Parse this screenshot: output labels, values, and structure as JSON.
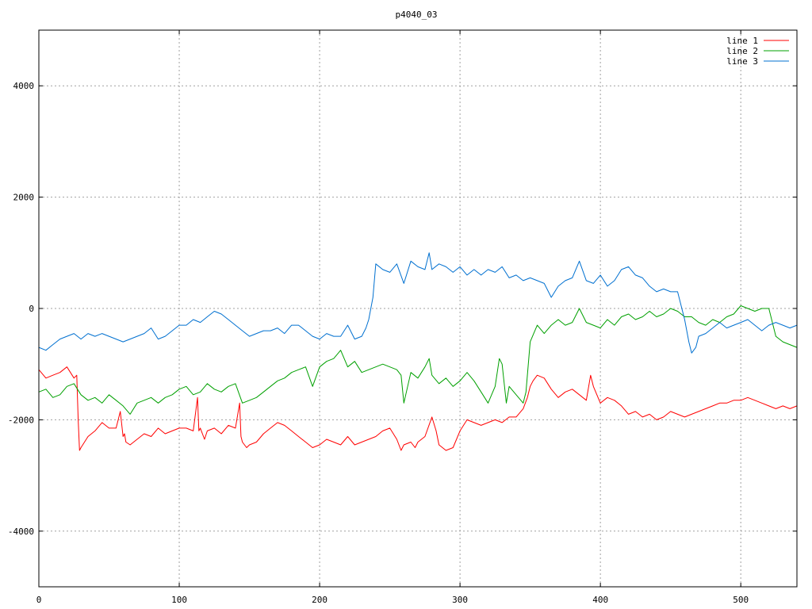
{
  "chart_data": {
    "type": "line",
    "title": "p4040_03",
    "xlabel": "",
    "ylabel": "",
    "xlim": [
      0,
      540
    ],
    "ylim": [
      -5000,
      5000
    ],
    "xticks": [
      0,
      100,
      200,
      300,
      400,
      500
    ],
    "yticks": [
      -4000,
      -2000,
      0,
      2000,
      4000
    ],
    "ytick_labels": [
      "-4000",
      "-2000",
      "0",
      "2000",
      "4000"
    ],
    "grid": true,
    "legend_position": "top-right",
    "series": [
      {
        "name": "line 1",
        "color": "#ff0000",
        "x": [
          0,
          5,
          10,
          15,
          20,
          25,
          27,
          28,
          29,
          30,
          35,
          40,
          45,
          50,
          55,
          58,
          60,
          61,
          62,
          65,
          70,
          75,
          80,
          85,
          90,
          95,
          100,
          105,
          110,
          113,
          114,
          115,
          118,
          120,
          125,
          130,
          135,
          140,
          143,
          144,
          145,
          148,
          150,
          155,
          160,
          165,
          170,
          175,
          180,
          185,
          190,
          195,
          200,
          205,
          210,
          215,
          220,
          225,
          230,
          235,
          240,
          245,
          250,
          255,
          258,
          260,
          265,
          268,
          270,
          275,
          280,
          283,
          285,
          290,
          295,
          300,
          305,
          310,
          315,
          320,
          325,
          330,
          335,
          340,
          345,
          348,
          350,
          352,
          355,
          360,
          365,
          370,
          375,
          380,
          385,
          390,
          393,
          395,
          400,
          405,
          410,
          415,
          420,
          425,
          430,
          435,
          440,
          445,
          450,
          455,
          460,
          465,
          470,
          475,
          480,
          485,
          490,
          495,
          500,
          505,
          510,
          515,
          520,
          525,
          530,
          535,
          540
        ],
        "y": [
          -1100,
          -1250,
          -1200,
          -1150,
          -1050,
          -1250,
          -1200,
          -2000,
          -2550,
          -2500,
          -2300,
          -2200,
          -2050,
          -2150,
          -2150,
          -1850,
          -2300,
          -2250,
          -2400,
          -2450,
          -2350,
          -2250,
          -2300,
          -2150,
          -2250,
          -2200,
          -2150,
          -2150,
          -2200,
          -1600,
          -2200,
          -2150,
          -2350,
          -2200,
          -2150,
          -2250,
          -2100,
          -2150,
          -1700,
          -2300,
          -2400,
          -2500,
          -2450,
          -2400,
          -2250,
          -2150,
          -2050,
          -2100,
          -2200,
          -2300,
          -2400,
          -2500,
          -2450,
          -2350,
          -2400,
          -2450,
          -2300,
          -2450,
          -2400,
          -2350,
          -2300,
          -2200,
          -2150,
          -2350,
          -2550,
          -2450,
          -2400,
          -2500,
          -2400,
          -2300,
          -1950,
          -2200,
          -2450,
          -2550,
          -2500,
          -2200,
          -2000,
          -2050,
          -2100,
          -2050,
          -2000,
          -2050,
          -1950,
          -1950,
          -1800,
          -1600,
          -1400,
          -1300,
          -1200,
          -1250,
          -1450,
          -1600,
          -1500,
          -1450,
          -1550,
          -1650,
          -1200,
          -1400,
          -1700,
          -1600,
          -1650,
          -1750,
          -1900,
          -1850,
          -1950,
          -1900,
          -2000,
          -1950,
          -1850,
          -1900,
          -1950,
          -1900,
          -1850,
          -1800,
          -1750,
          -1700,
          -1700,
          -1650,
          -1650,
          -1600,
          -1650,
          -1700,
          -1750,
          -1800,
          -1750,
          -1800,
          -1750
        ]
      },
      {
        "name": "line 2",
        "color": "#00a000",
        "x": [
          0,
          5,
          10,
          15,
          20,
          25,
          30,
          35,
          40,
          45,
          50,
          55,
          60,
          65,
          70,
          75,
          80,
          85,
          90,
          95,
          100,
          105,
          110,
          115,
          120,
          125,
          130,
          135,
          140,
          145,
          150,
          155,
          160,
          165,
          170,
          175,
          180,
          185,
          190,
          195,
          200,
          205,
          210,
          215,
          220,
          225,
          230,
          235,
          240,
          245,
          250,
          255,
          258,
          260,
          265,
          270,
          275,
          278,
          280,
          285,
          290,
          295,
          300,
          305,
          310,
          315,
          320,
          325,
          328,
          330,
          333,
          335,
          340,
          345,
          347,
          350,
          355,
          360,
          365,
          370,
          375,
          380,
          385,
          390,
          395,
          400,
          405,
          410,
          415,
          420,
          425,
          430,
          435,
          440,
          445,
          450,
          455,
          460,
          465,
          470,
          475,
          480,
          485,
          490,
          495,
          500,
          505,
          510,
          515,
          520,
          525,
          530,
          535,
          540
        ],
        "y": [
          -1500,
          -1450,
          -1600,
          -1550,
          -1400,
          -1350,
          -1550,
          -1650,
          -1600,
          -1700,
          -1550,
          -1650,
          -1750,
          -1900,
          -1700,
          -1650,
          -1600,
          -1700,
          -1600,
          -1550,
          -1450,
          -1400,
          -1550,
          -1500,
          -1350,
          -1450,
          -1500,
          -1400,
          -1350,
          -1700,
          -1650,
          -1600,
          -1500,
          -1400,
          -1300,
          -1250,
          -1150,
          -1100,
          -1050,
          -1400,
          -1050,
          -950,
          -900,
          -750,
          -1050,
          -950,
          -1150,
          -1100,
          -1050,
          -1000,
          -1050,
          -1100,
          -1200,
          -1700,
          -1150,
          -1250,
          -1050,
          -900,
          -1200,
          -1350,
          -1250,
          -1400,
          -1300,
          -1150,
          -1300,
          -1500,
          -1700,
          -1400,
          -900,
          -1000,
          -1700,
          -1400,
          -1550,
          -1700,
          -1500,
          -600,
          -300,
          -450,
          -300,
          -200,
          -300,
          -250,
          0,
          -250,
          -300,
          -350,
          -200,
          -300,
          -150,
          -100,
          -200,
          -150,
          -50,
          -150,
          -100,
          0,
          -50,
          -150,
          -150,
          -250,
          -300,
          -200,
          -250,
          -150,
          -100,
          50,
          0,
          -50,
          0,
          0,
          -500,
          -600,
          -650,
          -700
        ]
      },
      {
        "name": "line 3",
        "color": "#0070d0",
        "x": [
          0,
          5,
          10,
          15,
          20,
          25,
          30,
          35,
          40,
          45,
          50,
          55,
          60,
          65,
          70,
          75,
          80,
          85,
          90,
          95,
          100,
          105,
          110,
          115,
          120,
          125,
          130,
          135,
          140,
          145,
          150,
          155,
          160,
          165,
          170,
          175,
          180,
          185,
          190,
          195,
          200,
          205,
          210,
          215,
          220,
          225,
          230,
          233,
          235,
          238,
          240,
          245,
          250,
          255,
          260,
          265,
          270,
          275,
          278,
          280,
          285,
          290,
          295,
          300,
          305,
          310,
          315,
          320,
          325,
          330,
          335,
          340,
          345,
          350,
          355,
          360,
          365,
          370,
          375,
          380,
          385,
          390,
          395,
          400,
          405,
          410,
          415,
          420,
          425,
          430,
          435,
          440,
          445,
          450,
          455,
          460,
          463,
          465,
          468,
          470,
          475,
          480,
          485,
          490,
          495,
          500,
          505,
          510,
          515,
          520,
          525,
          530,
          535,
          540
        ],
        "y": [
          -700,
          -750,
          -650,
          -550,
          -500,
          -450,
          -550,
          -450,
          -500,
          -450,
          -500,
          -550,
          -600,
          -550,
          -500,
          -450,
          -350,
          -550,
          -500,
          -400,
          -300,
          -300,
          -200,
          -250,
          -150,
          -50,
          -100,
          -200,
          -300,
          -400,
          -500,
          -450,
          -400,
          -400,
          -350,
          -450,
          -300,
          -300,
          -400,
          -500,
          -550,
          -450,
          -500,
          -500,
          -300,
          -550,
          -500,
          -350,
          -200,
          200,
          800,
          700,
          650,
          800,
          450,
          850,
          750,
          700,
          1000,
          700,
          800,
          750,
          650,
          750,
          600,
          700,
          600,
          700,
          650,
          750,
          550,
          600,
          500,
          550,
          500,
          450,
          200,
          400,
          500,
          550,
          850,
          500,
          450,
          600,
          400,
          500,
          700,
          750,
          600,
          550,
          400,
          300,
          350,
          300,
          300,
          -200,
          -600,
          -800,
          -700,
          -500,
          -450,
          -350,
          -250,
          -350,
          -300,
          -250,
          -200,
          -300,
          -400,
          -300,
          -250,
          -300,
          -350,
          -300
        ]
      }
    ]
  }
}
